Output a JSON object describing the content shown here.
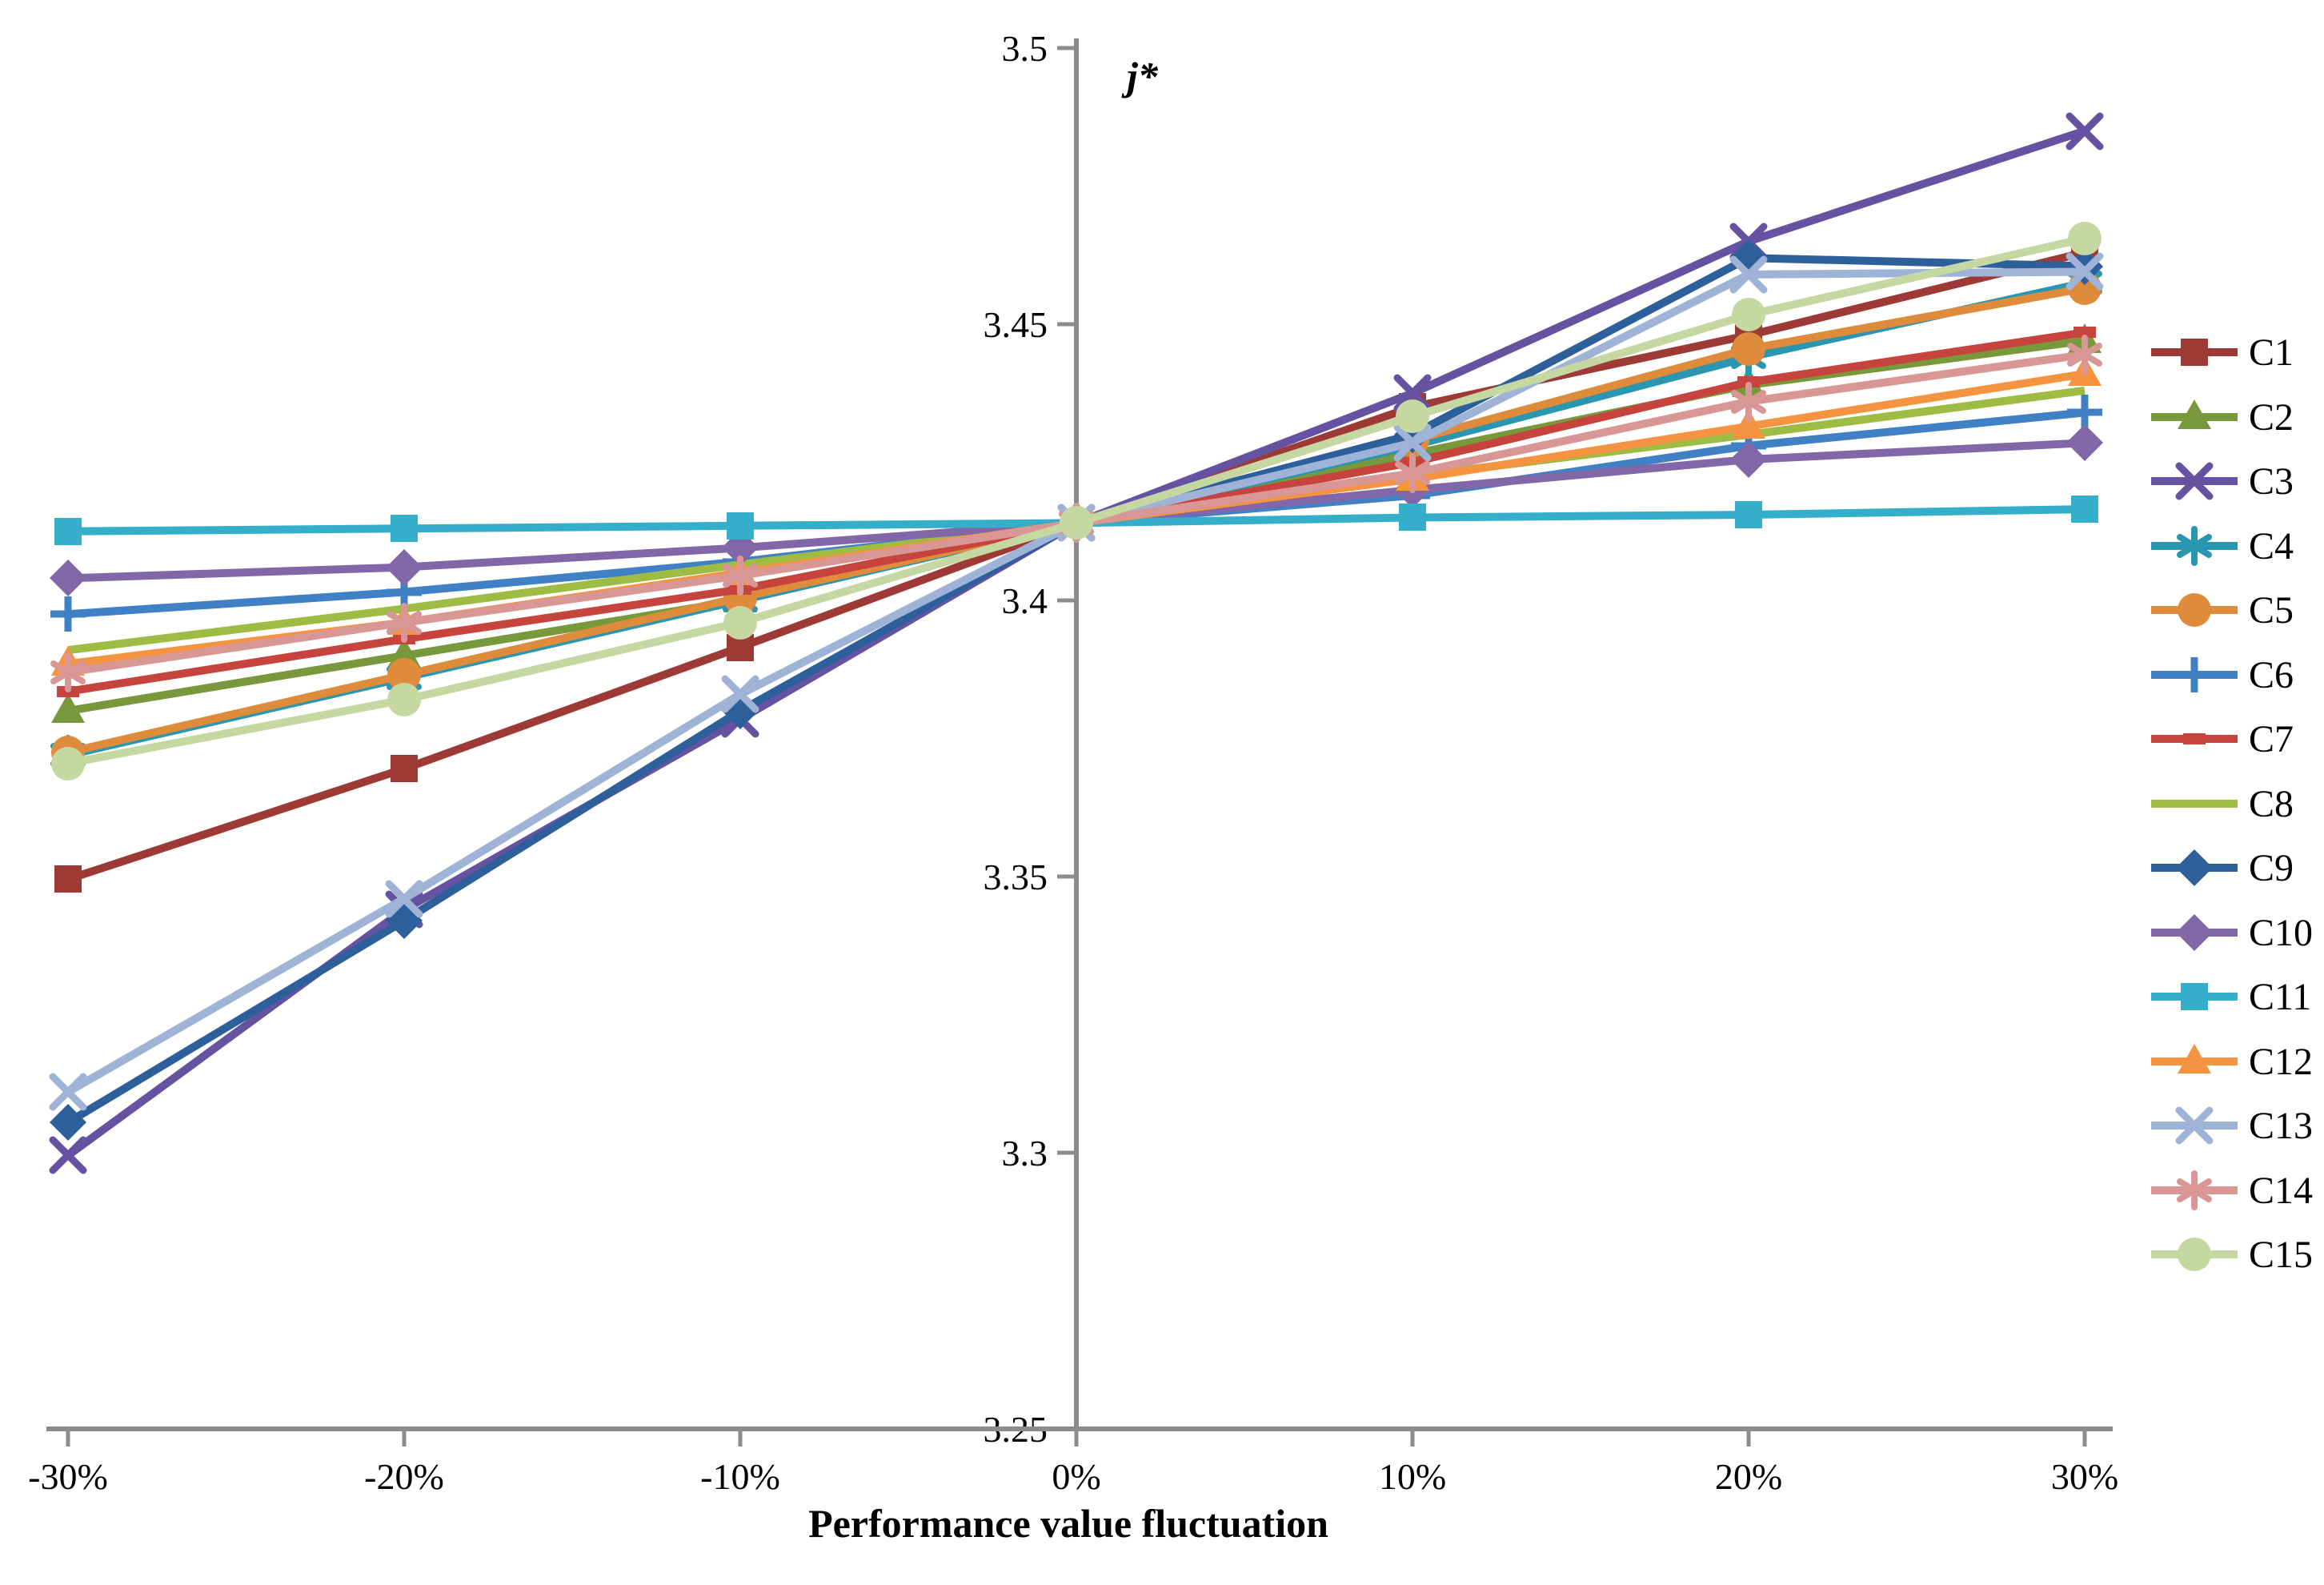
{
  "chart_data": {
    "type": "line",
    "title": "",
    "y_axis_label": "j*",
    "x_axis_label": "Performance value fluctuation",
    "categories": [
      "-30%",
      "-20%",
      "-10%",
      "0%",
      "10%",
      "20%",
      "30%"
    ],
    "y_tick_labels": [
      "3.25",
      "3.3",
      "3.35",
      "3.4",
      "3.45",
      "3.5"
    ],
    "y_tick_values": [
      3.25,
      3.3,
      3.35,
      3.4,
      3.45,
      3.5
    ],
    "ylim": [
      3.25,
      3.5
    ],
    "common_crossing_point": {
      "x": "0%",
      "y": 3.414
    },
    "grid": false,
    "legend_position": "right",
    "axis_color": "#8C8C8C",
    "text_color": "#000000",
    "series": [
      {
        "name": "C1",
        "color": "#9E3A36",
        "marker": "square",
        "values": [
          3.3495,
          3.3695,
          3.3915,
          3.414,
          3.435,
          3.448,
          3.463
        ]
      },
      {
        "name": "C2",
        "color": "#77983B",
        "marker": "triangle",
        "values": [
          3.38,
          3.39,
          3.4,
          3.414,
          3.4265,
          3.439,
          3.447
        ]
      },
      {
        "name": "C3",
        "color": "#6552A0",
        "marker": "x",
        "values": [
          3.2995,
          3.344,
          3.3785,
          3.414,
          3.4375,
          3.465,
          3.485
        ]
      },
      {
        "name": "C4",
        "color": "#2B96B0",
        "marker": "asterisk",
        "values": [
          3.372,
          3.386,
          3.4,
          3.414,
          3.428,
          3.444,
          3.4575
        ]
      },
      {
        "name": "C5",
        "color": "#DE8C3B",
        "marker": "circle",
        "values": [
          3.3725,
          3.3865,
          3.4005,
          3.414,
          3.429,
          3.4455,
          3.4565
        ]
      },
      {
        "name": "C6",
        "color": "#4080C4",
        "marker": "plus",
        "values": [
          3.3975,
          3.4015,
          3.407,
          3.414,
          3.419,
          3.428,
          3.434
        ]
      },
      {
        "name": "C7",
        "color": "#C7433E",
        "marker": "dash",
        "values": [
          3.3835,
          3.393,
          3.402,
          3.414,
          3.425,
          3.4395,
          3.4485
        ]
      },
      {
        "name": "C8",
        "color": "#9EBB43",
        "marker": "none",
        "values": [
          3.391,
          3.3985,
          3.4065,
          3.414,
          3.4225,
          3.43,
          3.438
        ]
      },
      {
        "name": "C9",
        "color": "#2D5F9B",
        "marker": "diamond",
        "values": [
          3.3055,
          3.342,
          3.38,
          3.414,
          3.43,
          3.462,
          3.4605
        ]
      },
      {
        "name": "C10",
        "color": "#8166A8",
        "marker": "diamond",
        "values": [
          3.404,
          3.406,
          3.4095,
          3.414,
          3.42,
          3.4255,
          3.4285
        ]
      },
      {
        "name": "C11",
        "color": "#34AEC9",
        "marker": "square",
        "values": [
          3.4125,
          3.413,
          3.4135,
          3.414,
          3.415,
          3.4155,
          3.4165
        ]
      },
      {
        "name": "C12",
        "color": "#F59440",
        "marker": "triangle",
        "values": [
          3.3885,
          3.396,
          3.405,
          3.414,
          3.422,
          3.4315,
          3.441
        ]
      },
      {
        "name": "C13",
        "color": "#9FB3D7",
        "marker": "x",
        "values": [
          3.311,
          3.346,
          3.383,
          3.414,
          3.4285,
          3.459,
          3.4595
        ]
      },
      {
        "name": "C14",
        "color": "#D89694",
        "marker": "asterisk",
        "values": [
          3.387,
          3.396,
          3.4045,
          3.414,
          3.423,
          3.436,
          3.4445
        ]
      },
      {
        "name": "C15",
        "color": "#C5D8A2",
        "marker": "circle",
        "values": [
          3.3705,
          3.382,
          3.396,
          3.414,
          3.4333,
          3.4517,
          3.4655
        ]
      }
    ]
  }
}
